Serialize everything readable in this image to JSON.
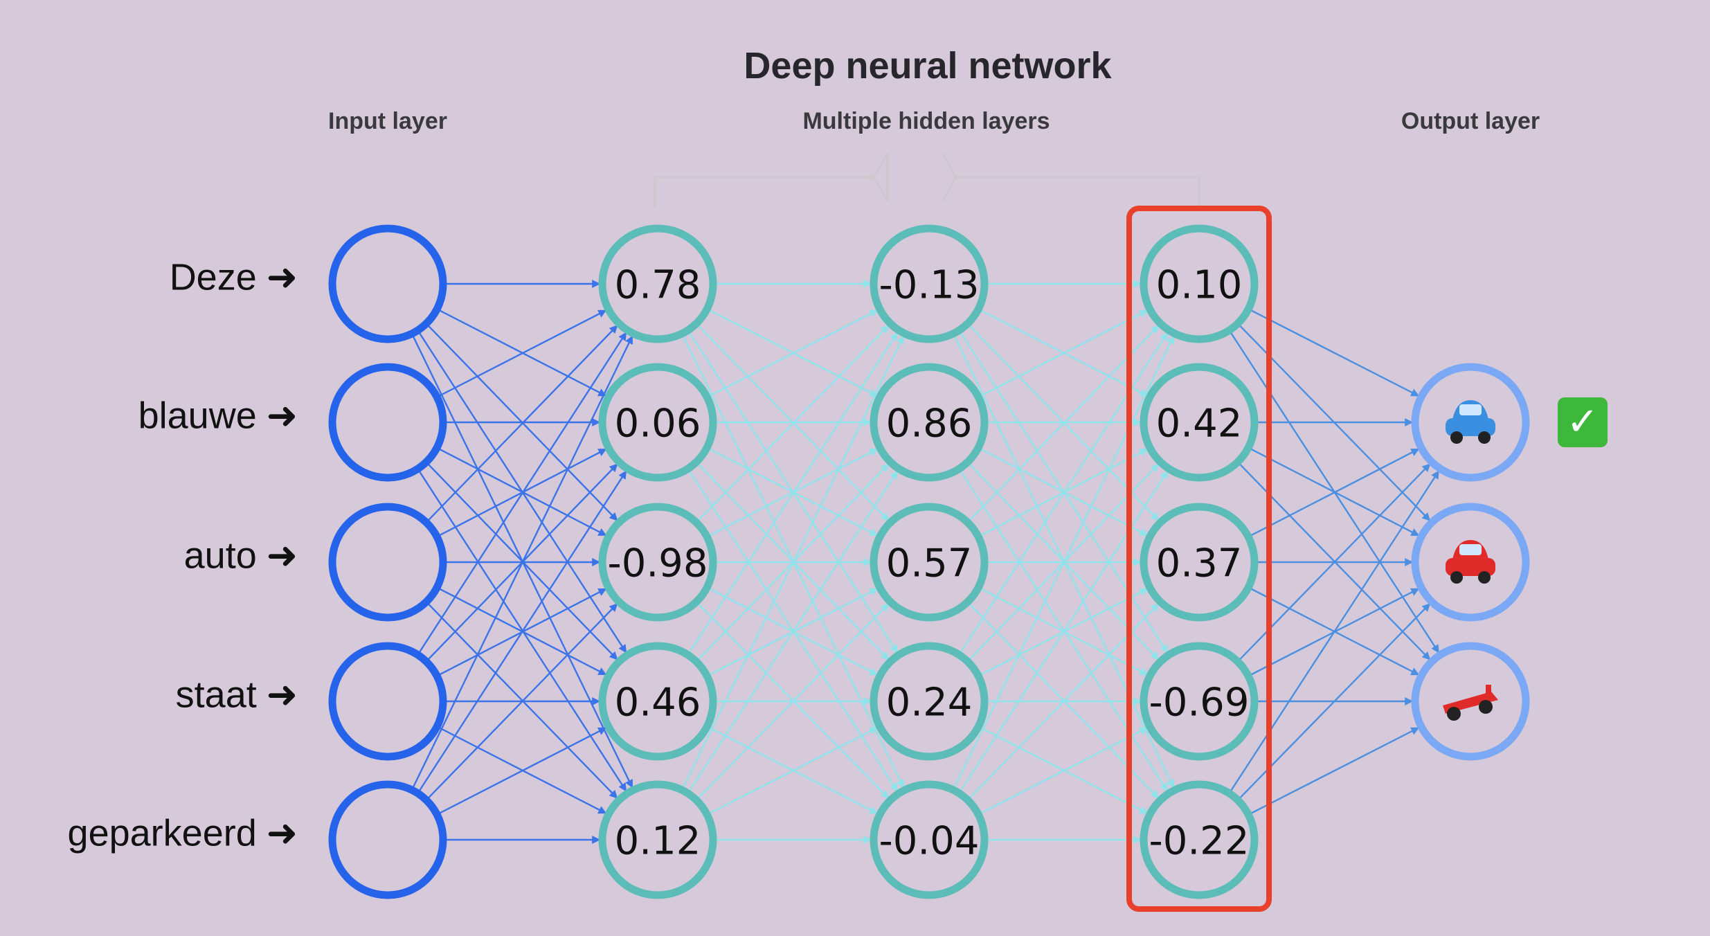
{
  "title": "Deep neural network",
  "layer_labels": {
    "input": "Input layer",
    "hidden": "Multiple hidden layers",
    "output": "Output layer"
  },
  "input_words": [
    "Deze",
    "blauwe",
    "auto",
    "staat",
    "geparkeerd"
  ],
  "arrow_glyph": "➜",
  "hidden_layers": [
    [
      "0.78",
      "0.06",
      "-0.98",
      "0.46",
      "0.12"
    ],
    [
      "-0.13",
      "0.86",
      "0.57",
      "0.24",
      "-0.04"
    ],
    [
      "0.10",
      "0.42",
      "0.37",
      "-0.69",
      "-0.22"
    ]
  ],
  "outputs": [
    {
      "icon": "blue-car-icon",
      "selected": true
    },
    {
      "icon": "red-car-icon",
      "selected": false
    },
    {
      "icon": "racing-car-icon",
      "selected": false
    }
  ],
  "selected_mark": "✓",
  "colors": {
    "background": "#d6c9da",
    "input_node": "#2563eb",
    "hidden_node": "#5bbcb8",
    "output_node": "#7aa8f5",
    "highlight": "#e8402a",
    "edge_input": "#3b73e8",
    "edge_hidden": "#8fe3ea",
    "edge_output": "#4a8fe0"
  }
}
